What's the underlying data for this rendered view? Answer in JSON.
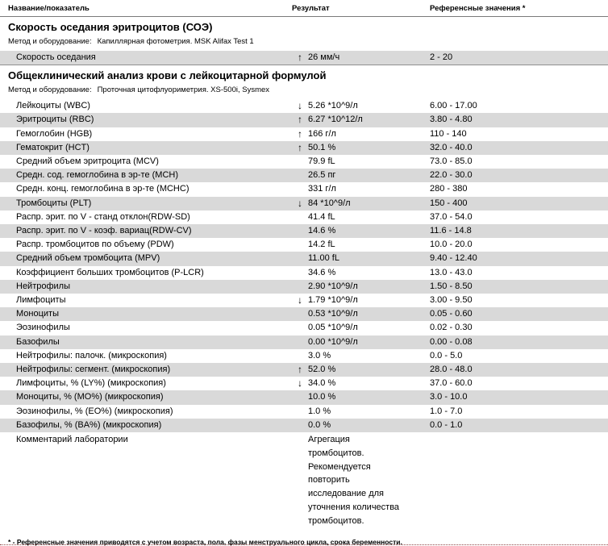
{
  "header": {
    "col_name": "Название/показатель",
    "col_result": "Результат",
    "col_ref": "Референсные значения *"
  },
  "colors": {
    "stripe": "#d9d9d9",
    "separator": "#8f8f8f",
    "bottom_line": "#8e4545"
  },
  "icons": {
    "arrow_up": "↑",
    "arrow_down": "↓"
  },
  "sections": [
    {
      "title": "Скорость оседания эритроцитов (СОЭ)",
      "method_label": "Метод и оборудование:",
      "method_value": "Капиллярная фотометрия. MSK Alifax Test 1",
      "rows": [
        {
          "name": "Скорость оседания",
          "arrow": "up",
          "result": "26 мм/ч",
          "ref": "2 - 20"
        }
      ]
    },
    {
      "title": "Общеклинический анализ крови с лейкоцитарной формулой",
      "method_label": "Метод и оборудование:",
      "method_value": "Проточная цитофлуориметрия. XS-500i, Sysmex",
      "rows": [
        {
          "name": "Лейкоциты (WBC)",
          "arrow": "down",
          "result": "5.26 *10^9/л",
          "ref": "6.00 - 17.00"
        },
        {
          "name": "Эритроциты (RBC)",
          "arrow": "up",
          "result": "6.27 *10^12/л",
          "ref": "3.80 - 4.80"
        },
        {
          "name": "Гемоглобин (HGB)",
          "arrow": "up",
          "result": "166 г/л",
          "ref": "110 - 140"
        },
        {
          "name": "Гематокрит (HCT)",
          "arrow": "up",
          "result": "50.1 %",
          "ref": "32.0 - 40.0"
        },
        {
          "name": "Средний объем эритроцита (MCV)",
          "arrow": null,
          "result": "79.9 fL",
          "ref": "73.0 - 85.0"
        },
        {
          "name": "Средн. сод. гемоглобина в эр-те (MCH)",
          "arrow": null,
          "result": "26.5 пг",
          "ref": "22.0 - 30.0"
        },
        {
          "name": "Средн. конц. гемоглобина в эр-те (MCHC)",
          "arrow": null,
          "result": "331 г/л",
          "ref": "280 - 380"
        },
        {
          "name": "Тромбоциты (PLT)",
          "arrow": "down",
          "result": "84 *10^9/л",
          "ref": "150 - 400"
        },
        {
          "name": "Распр. эрит. по V - станд отклон(RDW-SD)",
          "arrow": null,
          "result": "41.4 fL",
          "ref": "37.0 - 54.0"
        },
        {
          "name": "Распр. эрит. по V - коэф. вариац(RDW-CV)",
          "arrow": null,
          "result": "14.6 %",
          "ref": "11.6 - 14.8"
        },
        {
          "name": "Распр. тромбоцитов по объему (PDW)",
          "arrow": null,
          "result": "14.2 fL",
          "ref": "10.0 - 20.0"
        },
        {
          "name": "Средний объем тромбоцита (MPV)",
          "arrow": null,
          "result": "11.00 fL",
          "ref": "9.40 - 12.40"
        },
        {
          "name": "Коэффициент больших тромбоцитов (P-LCR)",
          "arrow": null,
          "result": "34.6 %",
          "ref": "13.0 - 43.0"
        },
        {
          "name": "Нейтрофилы",
          "arrow": null,
          "result": "2.90 *10^9/л",
          "ref": "1.50 - 8.50"
        },
        {
          "name": "Лимфоциты",
          "arrow": "down",
          "result": "1.79 *10^9/л",
          "ref": "3.00 - 9.50"
        },
        {
          "name": "Моноциты",
          "arrow": null,
          "result": "0.53 *10^9/л",
          "ref": "0.05 - 0.60"
        },
        {
          "name": "Эозинофилы",
          "arrow": null,
          "result": "0.05 *10^9/л",
          "ref": "0.02 - 0.30"
        },
        {
          "name": "Базофилы",
          "arrow": null,
          "result": "0.00 *10^9/л",
          "ref": "0.00 - 0.08"
        },
        {
          "name": "Нейтрофилы: палочк. (микроскопия)",
          "arrow": null,
          "result": "3.0 %",
          "ref": "0.0 - 5.0"
        },
        {
          "name": "Нейтрофилы: сегмент. (микроскопия)",
          "arrow": "up",
          "result": "52.0 %",
          "ref": "28.0 - 48.0"
        },
        {
          "name": "Лимфоциты, % (LY%) (микроскопия)",
          "arrow": "down",
          "result": "34.0 %",
          "ref": "37.0 - 60.0"
        },
        {
          "name": "Моноциты, % (MO%) (микроскопия)",
          "arrow": null,
          "result": "10.0 %",
          "ref": "3.0 - 10.0"
        },
        {
          "name": "Эозинофилы, % (EO%) (микроскопия)",
          "arrow": null,
          "result": "1.0 %",
          "ref": "1.0 - 7.0"
        },
        {
          "name": "Базофилы, % (BA%) (микроскопия)",
          "arrow": null,
          "result": "0.0 %",
          "ref": "0.0 - 1.0"
        }
      ],
      "comment": {
        "name": "Комментарий лаборатории",
        "text": "Агрегация\nтромбоцитов.\nРекомендуется\nповторить\nисследование для\nуточнения количества\nтромбоцитов."
      }
    }
  ],
  "footnote": "* - Референсные значения приводятся с учетом возраста, пола, фазы менструального цикла, срока беременности."
}
